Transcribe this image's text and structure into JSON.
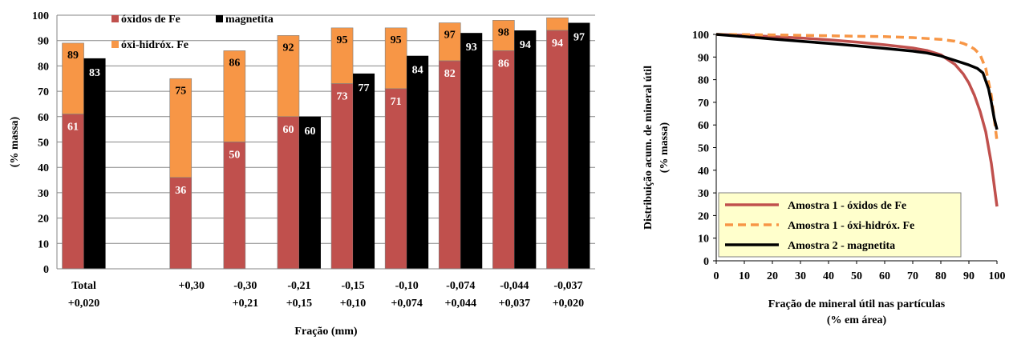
{
  "chart_data": [
    {
      "type": "bar",
      "stacked_series": [
        "óxidos de Fe",
        "óxi-hidróx. Fe"
      ],
      "categories": [
        [
          "Total",
          "+0,020"
        ],
        [
          "",
          ""
        ],
        [
          "+0,30",
          ""
        ],
        [
          "-0,30",
          "+0,21"
        ],
        [
          "-0,21",
          "+0,15"
        ],
        [
          "-0,15",
          "+0,10"
        ],
        [
          "-0,10",
          "+0,074"
        ],
        [
          "-0,074",
          "+0,044"
        ],
        [
          "-0,044",
          "+0,037"
        ],
        [
          "-0,037",
          "+0,020"
        ]
      ],
      "series": [
        {
          "name": "óxidos de Fe",
          "color": "#c0504d",
          "values": [
            61,
            null,
            36,
            50,
            60,
            73,
            71,
            82,
            86,
            94
          ]
        },
        {
          "name": "óxi-hidróx. Fe",
          "color": "#f79646",
          "values": [
            89,
            null,
            75,
            86,
            92,
            95,
            95,
            97,
            98,
            99
          ],
          "labels": [
            "89",
            "",
            "75",
            "86",
            "92",
            "95",
            "95",
            "97",
            "98",
            ""
          ]
        },
        {
          "name": "magnetita",
          "color": "#000000",
          "values": [
            83,
            null,
            null,
            null,
            60,
            77,
            84,
            93,
            94,
            97
          ]
        }
      ],
      "xlabel": "Fração (mm)",
      "ylabel": "(% massa)",
      "ylim": [
        0,
        100
      ],
      "yticks": [
        0,
        10,
        20,
        30,
        40,
        50,
        60,
        70,
        80,
        90,
        100
      ],
      "grid": true,
      "legend_position": "top-left"
    },
    {
      "type": "line",
      "series": [
        {
          "name": "Amostra 1 - óxidos de Fe",
          "color": "#c0504d",
          "style": "solid",
          "x": [
            0,
            10,
            20,
            30,
            40,
            50,
            60,
            70,
            75,
            80,
            85,
            88,
            90,
            92,
            94,
            96,
            98,
            100
          ],
          "y": [
            100,
            99.6,
            99,
            98.4,
            97.6,
            96.6,
            95.4,
            94,
            92.9,
            91,
            86.8,
            82.5,
            78.5,
            73,
            66,
            57,
            43,
            24
          ]
        },
        {
          "name": "Amostra 1 - óxi-hidróx. Fe",
          "color": "#f79646",
          "style": "dashed",
          "x": [
            0,
            10,
            20,
            30,
            40,
            50,
            60,
            70,
            80,
            85,
            88,
            90,
            92,
            94,
            96,
            98,
            100
          ],
          "y": [
            100,
            99.9,
            99.8,
            99.6,
            99.4,
            99.2,
            99,
            98.6,
            97.8,
            97,
            96,
            95,
            93.5,
            91,
            85,
            73,
            53
          ]
        },
        {
          "name": "Amostra 2 - magnetita",
          "color": "#000000",
          "style": "solid",
          "x": [
            0,
            10,
            20,
            30,
            40,
            50,
            60,
            70,
            75,
            80,
            85,
            90,
            93,
            95,
            97,
            98,
            99,
            100
          ],
          "y": [
            100,
            99,
            98,
            97,
            96,
            95,
            93.8,
            92.6,
            91.8,
            90.5,
            88.5,
            86.5,
            85,
            83,
            76,
            70,
            63,
            58
          ]
        }
      ],
      "xlabel": [
        "Fração de mineral útil nas partículas",
        "(% em área)"
      ],
      "ylabel": [
        "Distribuição acum. de mineral útil",
        "(% massa)"
      ],
      "xlim": [
        0,
        100
      ],
      "ylim": [
        0,
        100
      ],
      "xticks": [
        0,
        10,
        20,
        30,
        40,
        50,
        60,
        70,
        80,
        90,
        100
      ],
      "yticks": [
        0,
        10,
        20,
        30,
        40,
        50,
        60,
        70,
        80,
        90,
        100
      ],
      "grid": false,
      "legend_position": "bottom-left"
    }
  ]
}
